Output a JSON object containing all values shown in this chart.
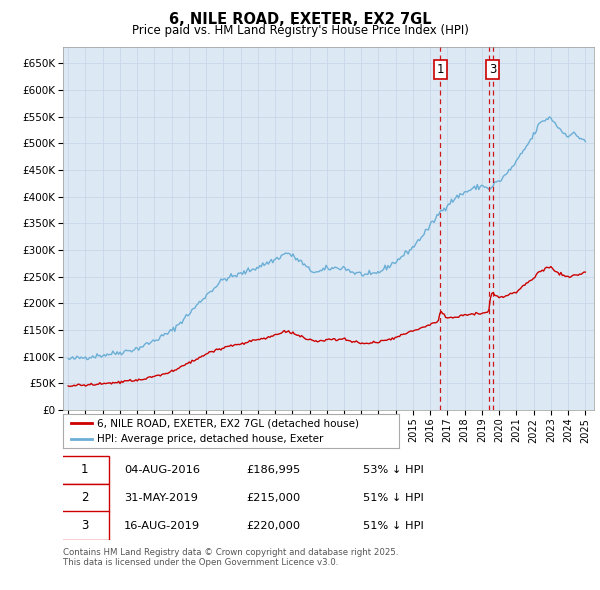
{
  "title": "6, NILE ROAD, EXETER, EX2 7GL",
  "subtitle": "Price paid vs. HM Land Registry's House Price Index (HPI)",
  "ylim": [
    0,
    680000
  ],
  "yticks": [
    0,
    50000,
    100000,
    150000,
    200000,
    250000,
    300000,
    350000,
    400000,
    450000,
    500000,
    550000,
    600000,
    650000
  ],
  "ytick_labels": [
    "£0",
    "£50K",
    "£100K",
    "£150K",
    "£200K",
    "£250K",
    "£300K",
    "£350K",
    "£400K",
    "£450K",
    "£500K",
    "£550K",
    "£600K",
    "£650K"
  ],
  "hpi_color": "#6baed6",
  "price_color": "#cc0000",
  "vline_color": "#cc0000",
  "plot_bg_color": "#dce9f5",
  "sale_date_floats": [
    2016.583,
    2019.416,
    2019.625
  ],
  "sale_top_labels": [
    [
      "1",
      2016.583
    ],
    [
      "3",
      2019.625
    ]
  ],
  "legend_price_label": "6, NILE ROAD, EXETER, EX2 7GL (detached house)",
  "legend_hpi_label": "HPI: Average price, detached house, Exeter",
  "table_rows": [
    [
      "1",
      "04-AUG-2016",
      "£186,995",
      "53% ↓ HPI"
    ],
    [
      "2",
      "31-MAY-2019",
      "£215,000",
      "51% ↓ HPI"
    ],
    [
      "3",
      "16-AUG-2019",
      "£220,000",
      "51% ↓ HPI"
    ]
  ],
  "footnote": "Contains HM Land Registry data © Crown copyright and database right 2025.\nThis data is licensed under the Open Government Licence v3.0.",
  "background_color": "#ffffff",
  "grid_color": "#c8d8e8",
  "xlim": [
    1994.7,
    2025.5
  ],
  "xtick_years": [
    1995,
    1996,
    1997,
    1998,
    1999,
    2000,
    2001,
    2002,
    2003,
    2004,
    2005,
    2006,
    2007,
    2008,
    2009,
    2010,
    2011,
    2012,
    2013,
    2014,
    2015,
    2016,
    2017,
    2018,
    2019,
    2020,
    2021,
    2022,
    2023,
    2024,
    2025
  ]
}
